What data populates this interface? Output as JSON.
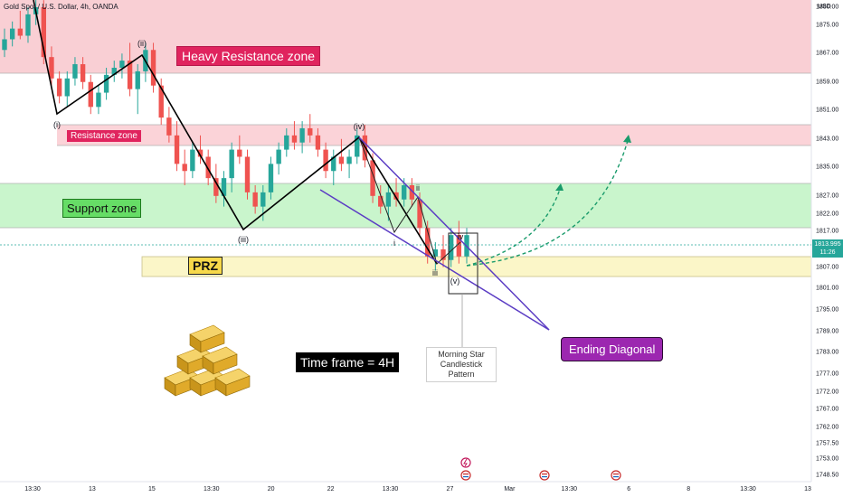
{
  "chart_data": {
    "type": "candlestick",
    "title": "Gold Spot / U.S. Dollar, 4h, OANDA",
    "price_unit": "USD",
    "current_price": "1813.995",
    "countdown": "11:26",
    "y_ticks": [
      "1880.00",
      "1875.00",
      "1867.00",
      "1859.00",
      "1851.00",
      "1843.00",
      "1835.00",
      "1827.00",
      "1822.00",
      "1817.00",
      "1807.00",
      "1801.00",
      "1795.00",
      "1789.00",
      "1783.00",
      "1777.00",
      "1772.00",
      "1767.00",
      "1762.00",
      "1757.50",
      "1753.00",
      "1748.50"
    ],
    "x_ticks": [
      "13:30",
      "13",
      "15",
      "13:30",
      "20",
      "22",
      "13:30",
      "27",
      "Mar",
      "13:30",
      "6",
      "8",
      "13:30",
      "13"
    ],
    "ohlc": [
      [
        1868,
        1874,
        1866,
        1871
      ],
      [
        1871,
        1876,
        1869,
        1874
      ],
      [
        1874,
        1879,
        1871,
        1872
      ],
      [
        1872,
        1880,
        1870,
        1878
      ],
      [
        1878,
        1883,
        1875,
        1880
      ],
      [
        1880,
        1882,
        1864,
        1866
      ],
      [
        1866,
        1869,
        1858,
        1860
      ],
      [
        1860,
        1862,
        1853,
        1855
      ],
      [
        1855,
        1862,
        1852,
        1860
      ],
      [
        1860,
        1866,
        1858,
        1864
      ],
      [
        1864,
        1866,
        1857,
        1859
      ],
      [
        1859,
        1861,
        1850,
        1852
      ],
      [
        1852,
        1858,
        1850,
        1856
      ],
      [
        1856,
        1863,
        1854,
        1861
      ],
      [
        1861,
        1865,
        1859,
        1863
      ],
      [
        1863,
        1867,
        1860,
        1865
      ],
      [
        1865,
        1870,
        1855,
        1857
      ],
      [
        1857,
        1864,
        1850,
        1862
      ],
      [
        1862,
        1870,
        1859,
        1868
      ],
      [
        1868,
        1870,
        1856,
        1858
      ],
      [
        1858,
        1860,
        1847,
        1849
      ],
      [
        1849,
        1852,
        1842,
        1844
      ],
      [
        1844,
        1848,
        1834,
        1836
      ],
      [
        1836,
        1840,
        1830,
        1834
      ],
      [
        1834,
        1842,
        1832,
        1840
      ],
      [
        1840,
        1844,
        1836,
        1838
      ],
      [
        1838,
        1840,
        1830,
        1832
      ],
      [
        1832,
        1836,
        1825,
        1827
      ],
      [
        1827,
        1834,
        1824,
        1832
      ],
      [
        1832,
        1842,
        1828,
        1840
      ],
      [
        1840,
        1844,
        1836,
        1838
      ],
      [
        1838,
        1840,
        1826,
        1828
      ],
      [
        1828,
        1830,
        1822,
        1824
      ],
      [
        1824,
        1830,
        1820,
        1828
      ],
      [
        1828,
        1838,
        1826,
        1836
      ],
      [
        1836,
        1842,
        1833,
        1840
      ],
      [
        1840,
        1846,
        1838,
        1844
      ],
      [
        1844,
        1848,
        1840,
        1842
      ],
      [
        1842,
        1848,
        1839,
        1846
      ],
      [
        1846,
        1850,
        1842,
        1844
      ],
      [
        1844,
        1846,
        1838,
        1840
      ],
      [
        1840,
        1842,
        1832,
        1834
      ],
      [
        1834,
        1840,
        1830,
        1838
      ],
      [
        1838,
        1843,
        1834,
        1836
      ],
      [
        1836,
        1840,
        1832,
        1838
      ],
      [
        1838,
        1846,
        1836,
        1844
      ],
      [
        1844,
        1847,
        1835,
        1837
      ],
      [
        1837,
        1839,
        1825,
        1827
      ],
      [
        1827,
        1830,
        1822,
        1824
      ],
      [
        1824,
        1830,
        1820,
        1828
      ],
      [
        1828,
        1832,
        1824,
        1826
      ],
      [
        1826,
        1832,
        1824,
        1830
      ],
      [
        1830,
        1832,
        1824,
        1826
      ],
      [
        1826,
        1828,
        1816,
        1818
      ],
      [
        1818,
        1820,
        1808,
        1810
      ],
      [
        1810,
        1814,
        1806,
        1812
      ],
      [
        1812,
        1816,
        1807,
        1809
      ],
      [
        1809,
        1818,
        1807,
        1816
      ],
      [
        1816,
        1820,
        1808,
        1810
      ],
      [
        1810,
        1818,
        1808,
        1816
      ]
    ],
    "annotations": {
      "heavy_resistance": "Heavy Resistance zone",
      "resistance": "Resistance zone",
      "support": "Support zone",
      "prz": "PRZ",
      "timeframe": "Time frame = 4H",
      "ending_diagonal": "Ending Diagonal",
      "pattern_line1": "Morning Star",
      "pattern_line2": "Candlestick Pattern"
    },
    "waves": {
      "i": "(i)",
      "ii": "(ii)",
      "iii": "(iii)",
      "iv": "(iv)",
      "v": "(v)",
      "sub_i": "i",
      "sub_ii": "ii",
      "sub_iii": "iii",
      "sub_iv": "iv"
    },
    "colors": {
      "up": "#26a69a",
      "down": "#ef5350",
      "wave": "#000000",
      "diagonal": "#5b3cc4",
      "projection": "#199b6b",
      "heavy": "#f9cfd4",
      "resistance": "#fbd3d8",
      "support": "#c9f5cc",
      "prz": "#fbf6c8"
    }
  }
}
